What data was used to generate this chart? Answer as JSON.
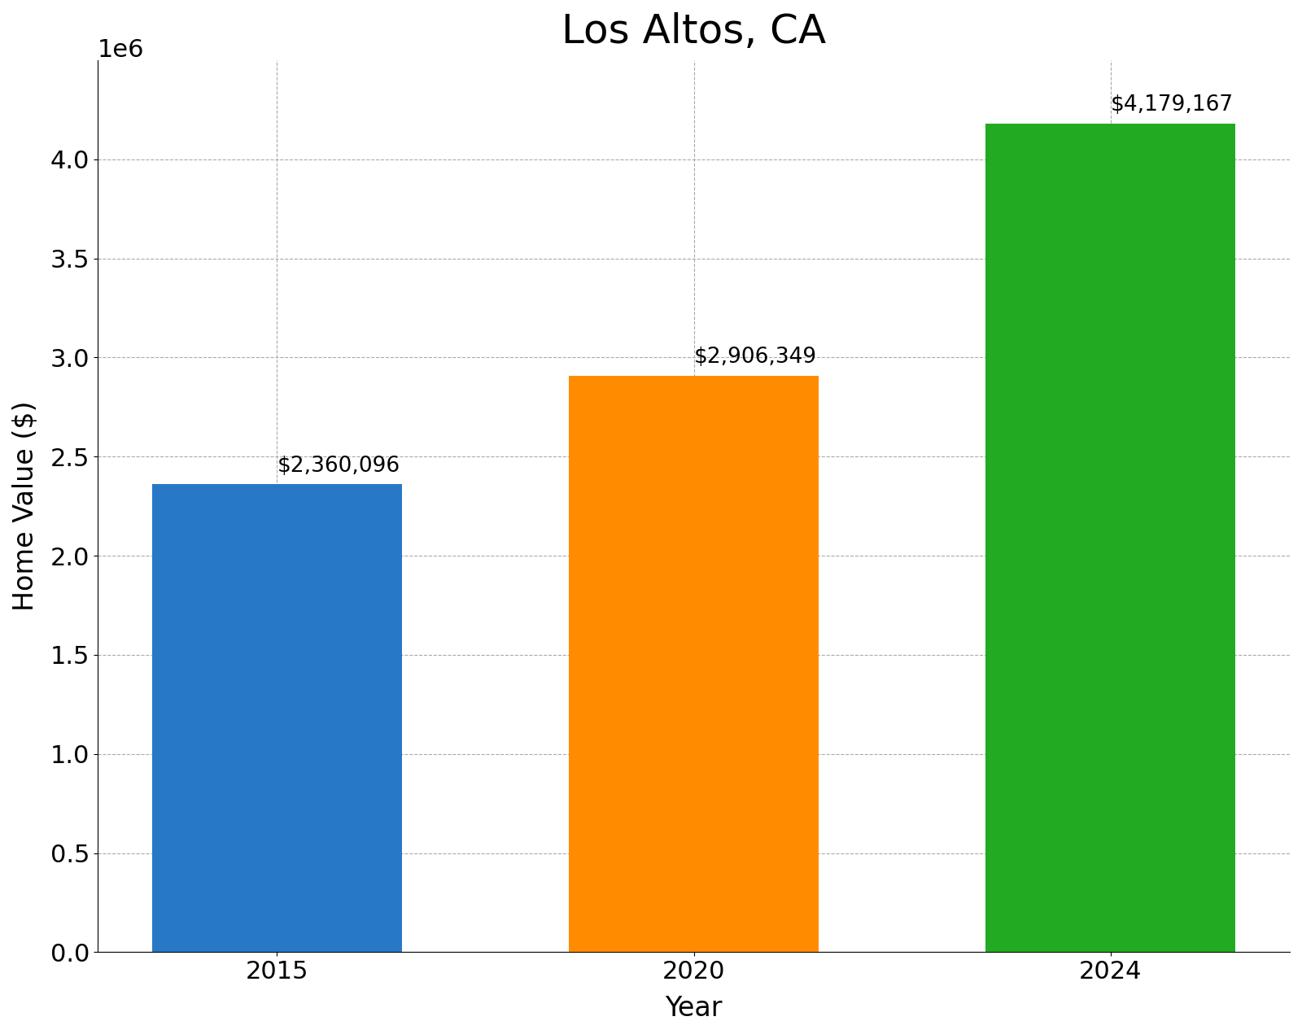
{
  "title": "Los Altos, CA",
  "xlabel": "Year",
  "ylabel": "Home Value ($)",
  "categories": [
    "2015",
    "2020",
    "2024"
  ],
  "values": [
    2360096,
    2906349,
    4179167
  ],
  "bar_colors": [
    "#2878c8",
    "#ff8c00",
    "#22aa22"
  ],
  "annotations": [
    "$2,360,096",
    "$2,906,349",
    "$4,179,167"
  ],
  "ylim": [
    0,
    4500000
  ],
  "title_fontsize": 36,
  "axis_label_fontsize": 24,
  "tick_fontsize": 22,
  "annotation_fontsize": 19,
  "bar_width": 0.6,
  "grid_color": "#aaaaaa",
  "grid_linestyle": "--",
  "background_color": "#ffffff"
}
